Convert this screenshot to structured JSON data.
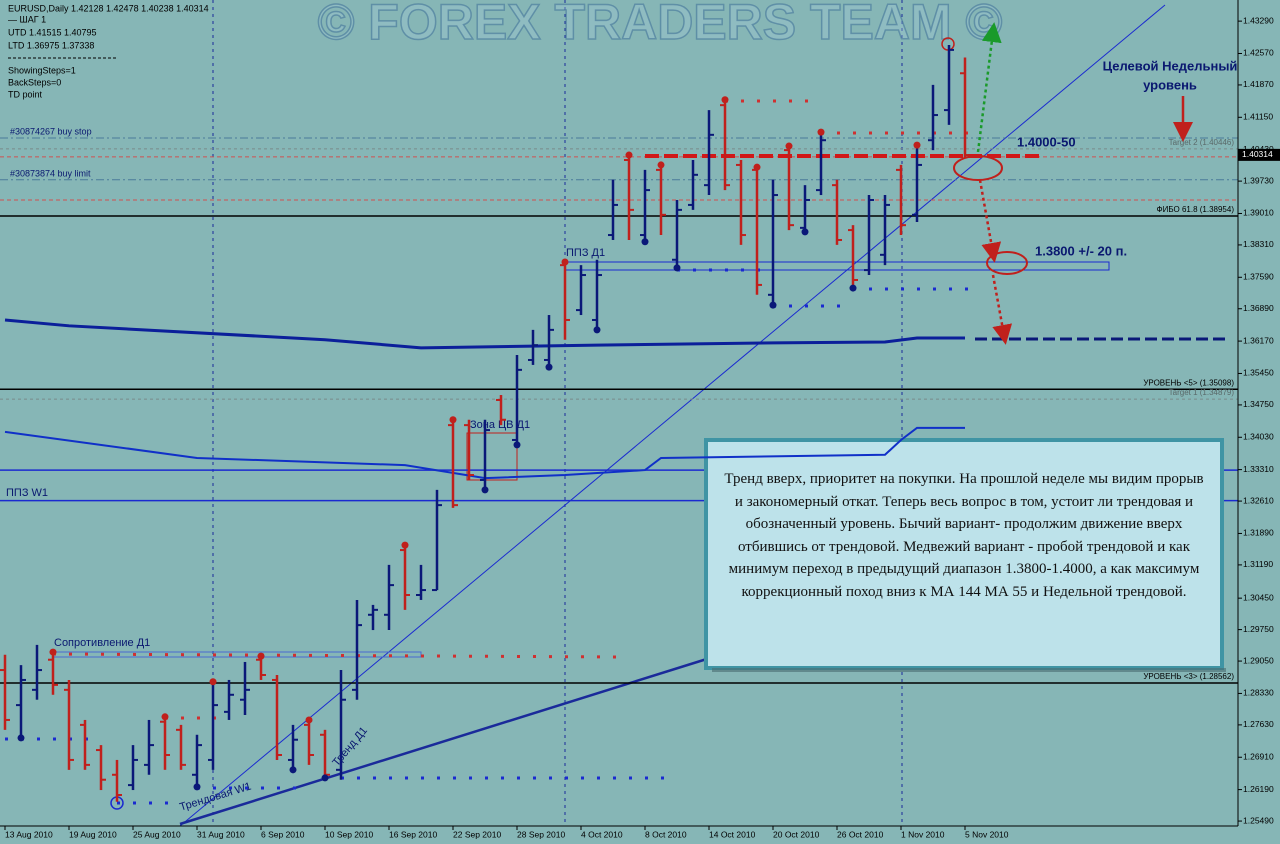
{
  "chart_data": {
    "type": "ohlc",
    "title": "EURUSD,Daily  1.42128 1.42478 1.40238 1.40314",
    "info_lines": [
      "—   ШАГ 1",
      "UTD 1.41515  1.40795",
      "LTD  1.36975  1.37338",
      "ShowingSteps=1",
      "BackSteps=0",
      "TD point"
    ],
    "watermark": "© FOREX TRADERS TEAM ©",
    "categories": [
      "13 Aug 2010",
      null,
      null,
      null,
      "19 Aug 2010",
      null,
      null,
      null,
      "25 Aug 2010",
      null,
      null,
      null,
      "31 Aug 2010",
      null,
      null,
      null,
      "6 Sep 2010",
      null,
      null,
      null,
      "10 Sep 2010",
      null,
      null,
      null,
      "16 Sep 2010",
      null,
      null,
      null,
      "22 Sep 2010",
      null,
      null,
      null,
      "28 Sep 2010",
      null,
      null,
      null,
      "4 Oct 2010",
      null,
      null,
      null,
      "8 Oct 2010",
      null,
      null,
      null,
      "14 Oct 2010",
      null,
      null,
      null,
      "20 Oct 2010",
      null,
      null,
      null,
      "26 Oct 2010",
      null,
      null,
      null,
      "1 Nov 2010",
      null,
      null,
      null,
      "5 Nov 2010"
    ],
    "open": [
      1.2885,
      1.2807,
      1.2841,
      1.2908,
      1.2841,
      1.2763,
      1.2707,
      1.2652,
      1.2629,
      1.2674,
      1.277,
      1.2752,
      1.2652,
      1.2685,
      1.2792,
      1.2819,
      1.2908,
      1.2863,
      1.2685,
      1.2763,
      1.2741,
      1.2663,
      1.2841,
      1.3008,
      1.3008,
      1.3152,
      1.3052,
      1.3063,
      1.343,
      1.343,
      1.3308,
      1.3486,
      1.3397,
      1.3575,
      1.3575,
      1.3786,
      1.3686,
      1.3664,
      1.3853,
      1.402,
      1.3853,
      1.3998,
      1.3798,
      1.392,
      1.3964,
      1.4142,
      1.4009,
      1.3998,
      1.372,
      1.4042,
      1.3869,
      1.3953,
      1.3964,
      1.3864,
      1.3775,
      1.3809,
      1.3998,
      1.3898,
      1.4064,
      1.4131,
      1.4213
    ],
    "high": [
      1.2919,
      1.2896,
      1.2941,
      1.2925,
      1.2863,
      1.2774,
      1.2718,
      1.2685,
      1.2718,
      1.2774,
      1.2781,
      1.2763,
      1.2741,
      1.2859,
      1.2863,
      1.2903,
      1.2916,
      1.2874,
      1.2763,
      1.2774,
      1.2752,
      1.2885,
      1.3041,
      1.303,
      1.3119,
      1.3163,
      1.3119,
      1.3286,
      1.3442,
      1.3442,
      1.3442,
      1.3497,
      1.3586,
      1.3642,
      1.3675,
      1.3793,
      1.3786,
      1.3798,
      1.3976,
      1.4031,
      1.3998,
      1.4009,
      1.3931,
      1.402,
      1.4131,
      1.4154,
      1.402,
      1.4004,
      1.3976,
      1.4051,
      1.3964,
      1.4082,
      1.3976,
      1.3875,
      1.3942,
      1.3942,
      1.4009,
      1.4053,
      1.4187,
      1.4276,
      1.4248
    ],
    "low": [
      1.2752,
      1.2734,
      1.2819,
      1.283,
      1.2663,
      1.2663,
      1.2618,
      1.2592,
      1.2618,
      1.2652,
      1.2663,
      1.2663,
      1.2625,
      1.2663,
      1.2774,
      1.2785,
      1.2863,
      1.2685,
      1.2663,
      1.2674,
      1.2645,
      1.2641,
      1.2819,
      1.2974,
      1.2974,
      1.3019,
      1.3041,
      1.3063,
      1.3246,
      1.3308,
      1.3286,
      1.343,
      1.3386,
      1.3564,
      1.3559,
      1.362,
      1.3675,
      1.3642,
      1.3842,
      1.3842,
      1.3838,
      1.3853,
      1.378,
      1.3909,
      1.3942,
      1.3953,
      1.3831,
      1.372,
      1.3697,
      1.3864,
      1.386,
      1.3942,
      1.3831,
      1.3735,
      1.3764,
      1.3786,
      1.3853,
      1.3882,
      1.4042,
      1.4098,
      1.4024
    ],
    "close": [
      1.2774,
      1.2863,
      1.2885,
      1.2852,
      1.2685,
      1.2674,
      1.2641,
      1.2607,
      1.2685,
      1.2718,
      1.2696,
      1.2674,
      1.2718,
      1.2807,
      1.283,
      1.2841,
      1.2874,
      1.2696,
      1.273,
      1.2696,
      1.2652,
      1.2819,
      1.2985,
      1.3019,
      1.3074,
      1.3052,
      1.3063,
      1.3252,
      1.3252,
      1.3319,
      1.3419,
      1.3442,
      1.3553,
      1.3608,
      1.3642,
      1.3664,
      1.3764,
      1.3764,
      1.392,
      1.3909,
      1.3953,
      1.3898,
      1.3909,
      1.3987,
      1.4076,
      1.3964,
      1.3853,
      1.3742,
      1.3942,
      1.3875,
      1.3931,
      1.4064,
      1.3842,
      1.3753,
      1.3931,
      1.392,
      1.3875,
      1.4009,
      1.412,
      1.4265,
      1.4031
    ],
    "up_color": "#0a1878",
    "down_color": "#c0201c",
    "high_dots": [
      3,
      10,
      13,
      16,
      19,
      25,
      28,
      35,
      39,
      41,
      45,
      47,
      49,
      51,
      57
    ],
    "high_dot_color": "#c0201c",
    "low_dots": [
      1,
      12,
      18,
      20,
      30,
      32,
      34,
      37,
      40,
      42,
      48,
      50,
      53
    ],
    "low_dot_color": "#0a1878",
    "ylim": [
      1.2538,
      1.4376
    ],
    "yticks": [
      {
        "value": 1.4329,
        "label": "1.43290"
      },
      {
        "value": 1.4257,
        "label": "1.42570"
      },
      {
        "value": 1.4187,
        "label": "1.41870"
      },
      {
        "value": 1.4115,
        "label": "1.41150"
      },
      {
        "value": 1.4043,
        "label": "1.40430"
      },
      {
        "value": 1.3973,
        "label": "1.39730"
      },
      {
        "value": 1.3901,
        "label": "1.39010"
      },
      {
        "value": 1.3831,
        "label": "1.38310"
      },
      {
        "value": 1.3759,
        "label": "1.37590"
      },
      {
        "value": 1.3689,
        "label": "1.36890"
      },
      {
        "value": 1.3617,
        "label": "1.36170"
      },
      {
        "value": 1.3545,
        "label": "1.35450"
      },
      {
        "value": 1.3475,
        "label": "1.34750"
      },
      {
        "value": 1.3403,
        "label": "1.34030"
      },
      {
        "value": 1.3331,
        "label": "1.33310"
      },
      {
        "value": 1.3261,
        "label": "1.32610"
      },
      {
        "value": 1.3189,
        "label": "1.31890"
      },
      {
        "value": 1.3119,
        "label": "1.31190"
      },
      {
        "value": 1.3045,
        "label": "1.30450"
      },
      {
        "value": 1.2975,
        "label": "1.29750"
      },
      {
        "value": 1.2905,
        "label": "1.29050"
      },
      {
        "value": 1.2833,
        "label": "1.28330"
      },
      {
        "value": 1.2763,
        "label": "1.27630"
      },
      {
        "value": 1.2691,
        "label": "1.26910"
      },
      {
        "value": 1.2619,
        "label": "1.26190"
      },
      {
        "value": 1.2549,
        "label": "1.25490"
      }
    ],
    "current_price": {
      "value": 1.40314,
      "label": "1.40314"
    },
    "ma_lines": [
      {
        "color": "#0b1f9a",
        "width": 3,
        "points": [
          [
            0,
            1.3664
          ],
          [
            4,
            1.3651
          ],
          [
            20,
            1.362
          ],
          [
            26,
            1.3602
          ],
          [
            37,
            1.3608
          ],
          [
            48,
            1.3613
          ],
          [
            55,
            1.3615
          ],
          [
            57,
            1.3624
          ],
          [
            60,
            1.3624
          ]
        ]
      },
      {
        "color": "#1030c8",
        "width": 2,
        "points": [
          [
            0,
            1.3415
          ],
          [
            12,
            1.3357
          ],
          [
            25,
            1.3341
          ],
          [
            30,
            1.3312
          ],
          [
            35,
            1.3319
          ],
          [
            40,
            1.333
          ],
          [
            41,
            1.3357
          ],
          [
            55,
            1.3364
          ],
          [
            56,
            1.3397
          ],
          [
            57,
            1.3424
          ],
          [
            60,
            1.3424
          ]
        ]
      }
    ],
    "levels": [
      {
        "value": 1.38954,
        "label": "ФИБО 61.8  (1.38954)",
        "color": "#000000",
        "width": 1.5,
        "dash": "none"
      },
      {
        "value": 1.35098,
        "label": "УРОВЕНЬ <5>   (1.35098)",
        "color": "#000000",
        "width": 1.5,
        "dash": "none"
      },
      {
        "value": 1.28562,
        "label": "УРОВЕНЬ <3>   (1.28562)",
        "color": "#000000",
        "width": 1.5,
        "dash": "none"
      },
      {
        "value": 1.34879,
        "label": "Target 1  (1.34879)",
        "color": "#7a8a8a",
        "width": 1,
        "dash": "3,3"
      },
      {
        "value": 1.40446,
        "label": "Target 2  (1.40446)",
        "color": "#7a8a8a",
        "width": 1,
        "dash": "3,3"
      },
      {
        "value": 1.333,
        "color": "#1a2ad0",
        "width": 1.5,
        "dash": "none"
      },
      {
        "value": 1.3262,
        "color": "#1a2ad0",
        "width": 1.5,
        "dash": "none"
      },
      {
        "value": 1.4069,
        "color": "#4a7a9a",
        "width": 1,
        "dash": "8,3,2,3"
      },
      {
        "value": 1.3976,
        "color": "#4a7a9a",
        "width": 1,
        "dash": "8,3,2,3"
      },
      {
        "value": 1.4027,
        "color": "#d05050",
        "width": 1,
        "dash": "4,3"
      },
      {
        "value": 1.3931,
        "color": "#d05050",
        "width": 1,
        "dash": "4,3"
      }
    ],
    "annotations": {
      "buy_stop": "#30874267 buy stop",
      "buy_limit": "#30873874 buy limit",
      "weekly_target": [
        "Целевой Недельный",
        "уровень"
      ],
      "zone_top": "1.4000-50",
      "zone_mid": "1.3800 +/- 20 п.",
      "resistance_d1": "Сопротивление Д1",
      "ppz_d1": "ППЗ Д1",
      "zone_cv_d1": "Зона ЦВ Д1",
      "ppz_w1": "ППЗ W1",
      "trend_w1": "Трендовая W1",
      "trend_d1": "Тренд Д1"
    },
    "note": "Тренд вверх, приоритет на покупки. На прошлой неделе мы видим прорыв и закономерный откат. Теперь весь вопрос в том, устоит ли трендовая и обозначенный уровень. Бычий вариант- продолжим движение вверх отбившись от трендовой. Медвежий вариант - пробой трендовой и как минимум переход в предыдущий диапазон 1.3800-1.4000, а как максимум коррекционный поход вниз к МА 144 МА 55 и Недельной трендовой."
  }
}
